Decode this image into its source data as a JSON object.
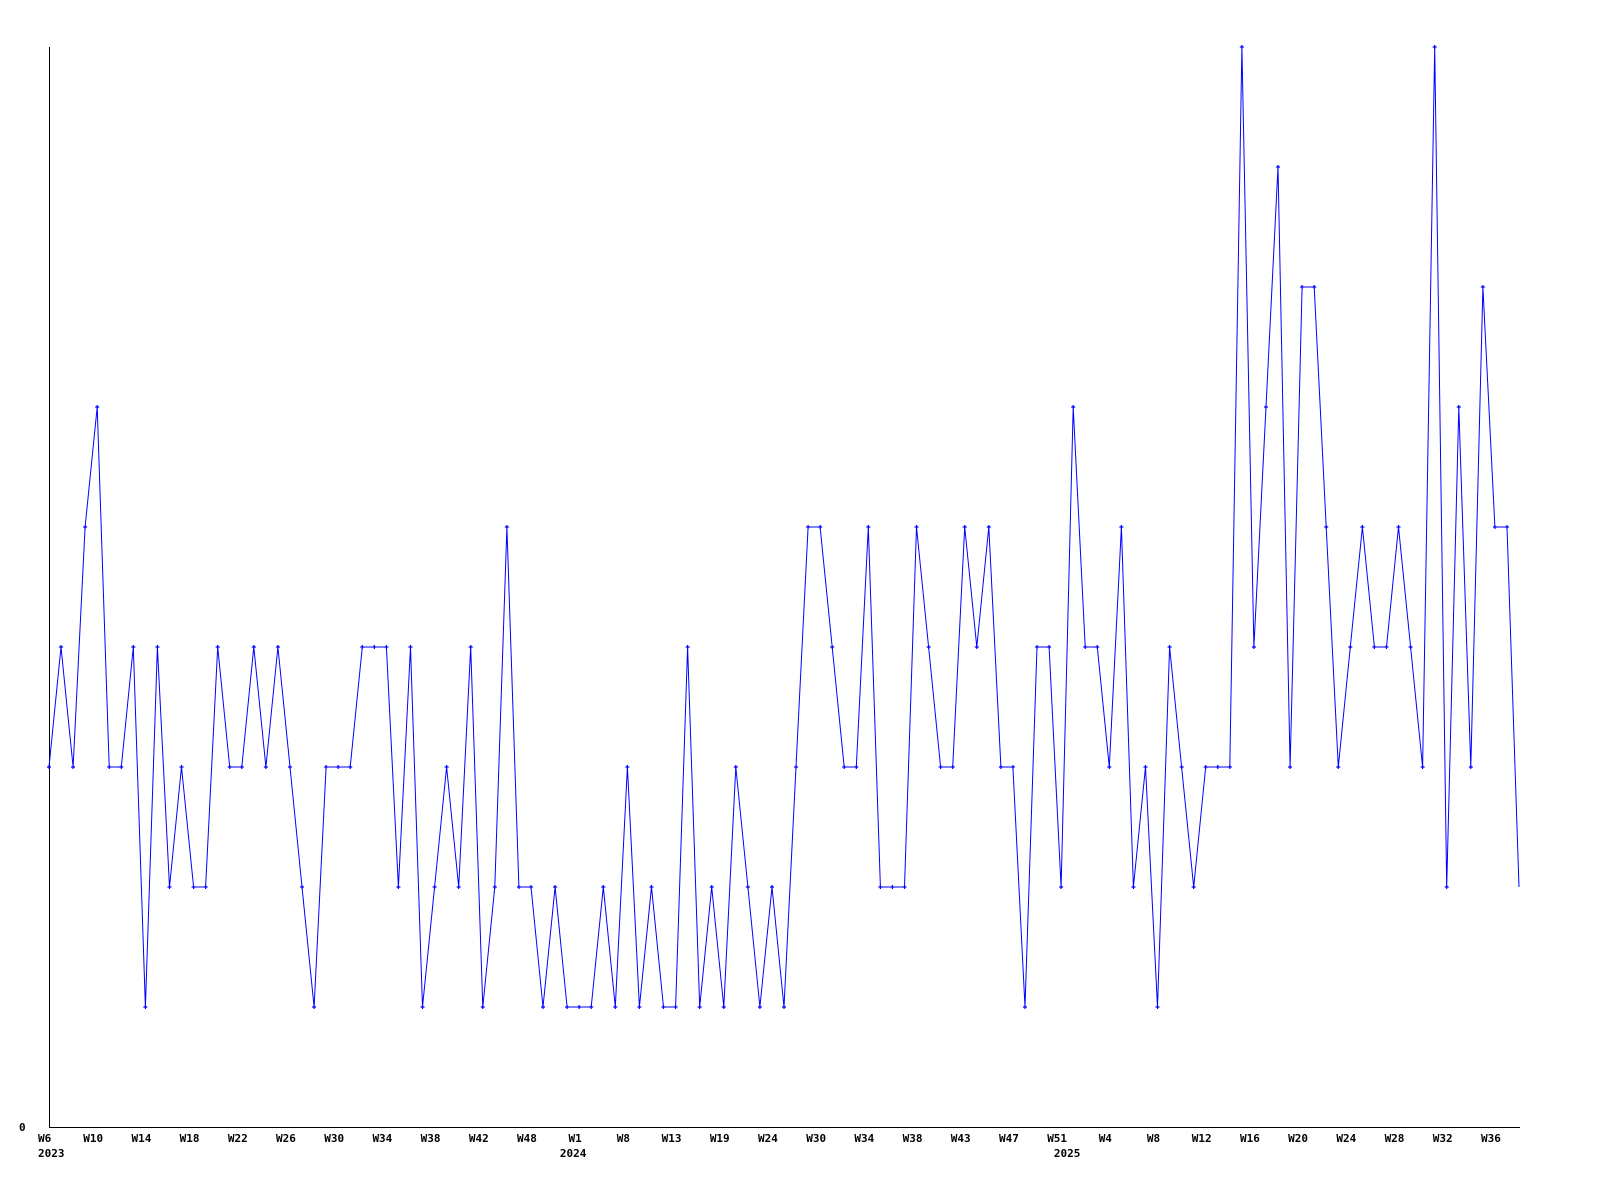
{
  "chart_data": {
    "type": "line",
    "title": "",
    "xlabel": "",
    "ylabel": "",
    "ylim": [
      0,
      9
    ],
    "y_tick_labels": [
      "0"
    ],
    "grid": false,
    "line_color": "#0000ff",
    "axis_color": "#000000",
    "x_tick_labels": [
      "W6",
      "W10",
      "W14",
      "W18",
      "W22",
      "W26",
      "W30",
      "W34",
      "W38",
      "W42",
      "W48",
      "W1",
      "W8",
      "W13",
      "W19",
      "W24",
      "W30",
      "W34",
      "W38",
      "W43",
      "W47",
      "W51",
      "W4",
      "W8",
      "W12",
      "W16",
      "W20",
      "W24",
      "W28",
      "W32",
      "W36"
    ],
    "year_labels": [
      {
        "label": "2023",
        "at_tick": 0
      },
      {
        "label": "2024",
        "at_tick": 11
      },
      {
        "label": "2025",
        "at_point": 85
      }
    ],
    "values": [
      3,
      4,
      3,
      5,
      6,
      3,
      3,
      4,
      1,
      4,
      2,
      3,
      2,
      2,
      4,
      3,
      3,
      4,
      3,
      4,
      3,
      2,
      1,
      3,
      3,
      3,
      4,
      4,
      4,
      2,
      4,
      1,
      2,
      3,
      2,
      4,
      1,
      2,
      5,
      2,
      2,
      1,
      2,
      1,
      1,
      1,
      2,
      1,
      3,
      1,
      2,
      1,
      1,
      4,
      1,
      2,
      1,
      3,
      2,
      1,
      2,
      1,
      3,
      5,
      5,
      4,
      3,
      3,
      5,
      2,
      2,
      2,
      5,
      4,
      3,
      3,
      5,
      4,
      5,
      3,
      3,
      1,
      4,
      4,
      2,
      6,
      4,
      4,
      3,
      5,
      2,
      3,
      1,
      4,
      3,
      2,
      3,
      3,
      3,
      9,
      4,
      6,
      8,
      3,
      7,
      7,
      5,
      3,
      4,
      5,
      4,
      4,
      5,
      4,
      3,
      9,
      2,
      6,
      3,
      7,
      5,
      5,
      2
    ]
  }
}
